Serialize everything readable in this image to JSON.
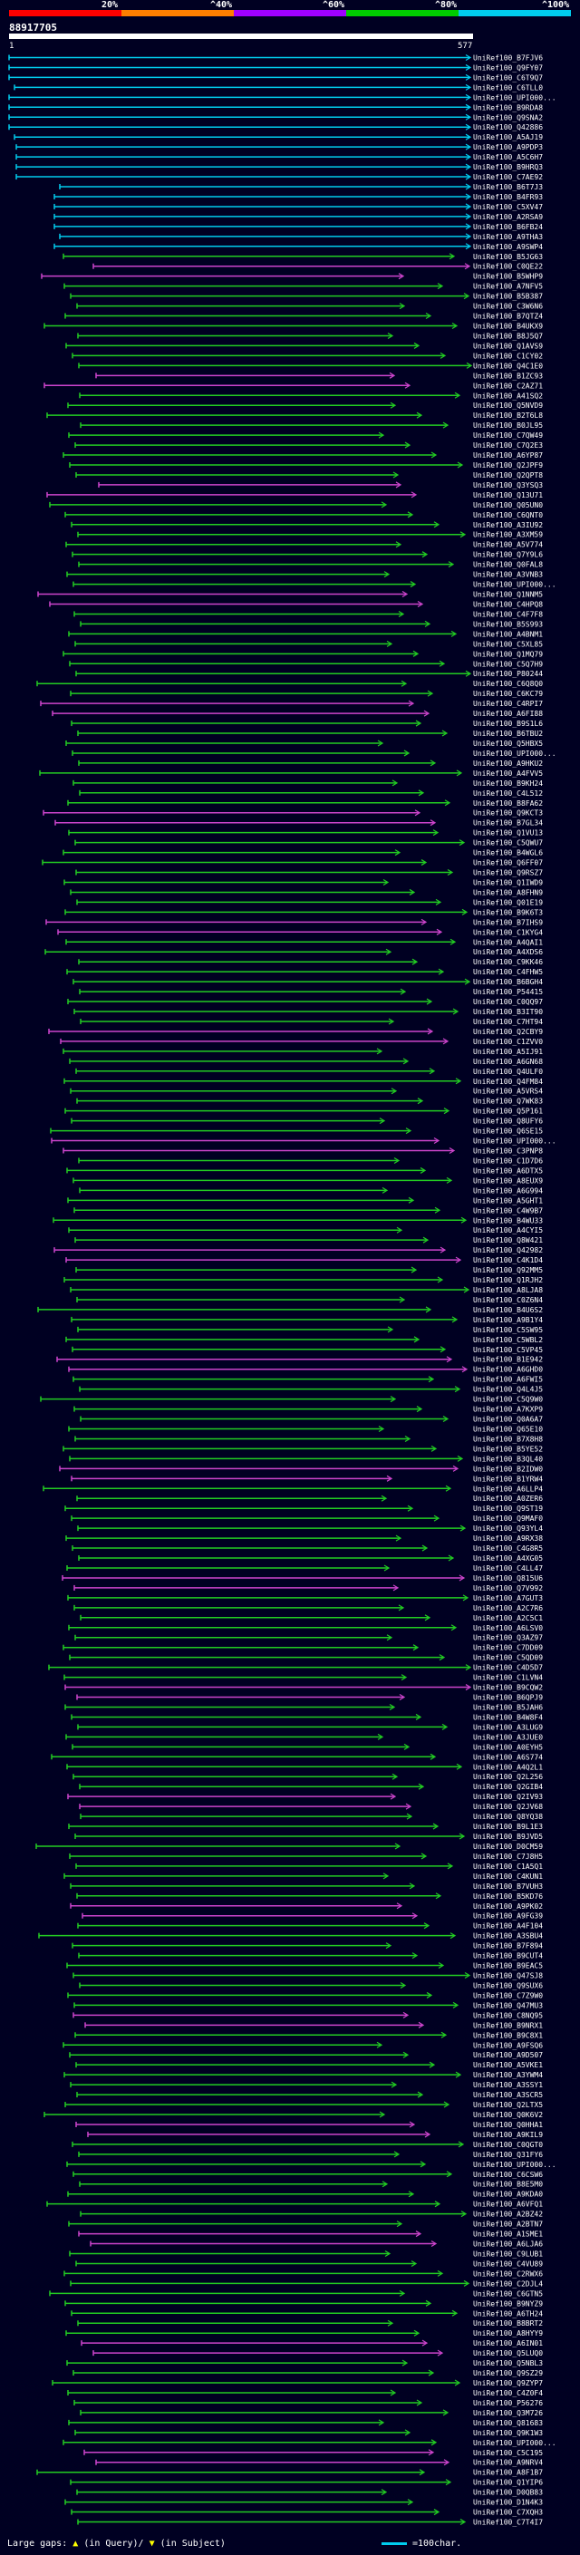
{
  "query_id": "88917705",
  "scale": {
    "start": "1",
    "end": "577"
  },
  "legend": [
    {
      "label": "20%",
      "color": "#ff0000"
    },
    {
      "label": "^40%",
      "color": "#ff7f00"
    },
    {
      "label": "^60%",
      "color": "#a000ff"
    },
    {
      "label": "^80%",
      "color": "#00cc00"
    },
    {
      "label": "^100%",
      "color": "#00ccee"
    }
  ],
  "footer": {
    "gaps_label": "Large gaps:",
    "gaps_query": "(in Query)/",
    "gaps_subject": "(in Subject)",
    "scale_note": "=100char."
  },
  "hits": [
    "UniRef100_B7FJV6",
    "UniRef100_Q9FY07",
    "UniRef100_C6T9Q7",
    "UniRef100_C6TLL0",
    "UniRef100_UPI000...",
    "UniRef100_B9RDA8",
    "UniRef100_Q9SNA2",
    "UniRef100_Q42886",
    "UniRef100_A5AJ19",
    "UniRef100_A9PDP3",
    "UniRef100_A5C6H7",
    "UniRef100_B9HRQ3",
    "UniRef100_C7AE92",
    "UniRef100_B6T7J3",
    "UniRef100_B4FR93",
    "UniRef100_C5XV47",
    "UniRef100_A2RSA9",
    "UniRef100_B6FB24",
    "UniRef100_A9THA3",
    "UniRef100_A9SWP4",
    "UniRef100_B5JG63",
    "UniRef100_C0QE22",
    "UniRef100_B5WHP9",
    "UniRef100_A7NFV5",
    "UniRef100_B5B387",
    "UniRef100_C3W6N6",
    "UniRef100_B7QTZ4",
    "UniRef100_B4UKX9",
    "UniRef100_B8J5Q7",
    "UniRef100_Q1AVS9",
    "UniRef100_C1CY02",
    "UniRef100_Q4C1E0",
    "UniRef100_B1ZC93",
    "UniRef100_C2AZ71",
    "UniRef100_A41SQ2",
    "UniRef100_Q5NVD9",
    "UniRef100_B2T6L8",
    "UniRef100_B0JL95",
    "UniRef100_C7QW49",
    "UniRef100_C7Q2E3",
    "UniRef100_A6YP87",
    "UniRef100_Q2JPF9",
    "UniRef100_Q2QPT8",
    "UniRef100_Q3YSQ3",
    "UniRef100_Q13U71",
    "UniRef100_Q05UN0",
    "UniRef100_C6QNT0",
    "UniRef100_A3IU92",
    "UniRef100_A3XM59",
    "UniRef100_A5V774",
    "UniRef100_Q7Y9L6",
    "UniRef100_Q0FAL8",
    "UniRef100_A3VNB3",
    "UniRef100_UPI000...",
    "UniRef100_Q1NNM5",
    "UniRef100_C4HPQ8",
    "UniRef100_C4F7F8",
    "UniRef100_B5S993",
    "UniRef100_A4BNM1",
    "UniRef100_C5XL85",
    "UniRef100_Q1MQ79",
    "UniRef100_C5Q7H9",
    "UniRef100_P80244",
    "UniRef100_C6Q8Q0",
    "UniRef100_C6KC79",
    "UniRef100_C4RPI7",
    "UniRef100_A6FI88",
    "UniRef100_B9S1L6",
    "UniRef100_B6TBU2",
    "UniRef100_Q5HBX5",
    "UniRef100_UPI000...",
    "UniRef100_A9HKU2",
    "UniRef100_A4FVV5",
    "UniRef100_B9KH24",
    "UniRef100_C4L512",
    "UniRef100_B8FA62",
    "UniRef100_Q9KCT3",
    "UniRef100_B7GL34",
    "UniRef100_Q1VU13",
    "UniRef100_C5QWU7",
    "UniRef100_B4WGL6",
    "UniRef100_Q6FF07",
    "UniRef100_Q9RSZ7",
    "UniRef100_Q1IWD9",
    "UniRef100_A8FHN9",
    "UniRef100_Q01E19",
    "UniRef100_B9K6T3",
    "UniRef100_B7IHS9",
    "UniRef100_C1KYG4",
    "UniRef100_A4QAI1",
    "UniRef100_A4XDS6",
    "UniRef100_C9KK46",
    "UniRef100_C4FHW5",
    "UniRef100_B6BGH4",
    "UniRef100_P54415",
    "UniRef100_C0QQ97",
    "UniRef100_B3IT90",
    "UniRef100_C7HT94",
    "UniRef100_Q2CBY9",
    "UniRef100_C1ZVV0",
    "UniRef100_A5IJ91",
    "UniRef100_A6GN68",
    "UniRef100_Q4ULF0",
    "UniRef100_Q4FM84",
    "UniRef100_A5VRS4",
    "UniRef100_Q7WK83",
    "UniRef100_Q5P161",
    "UniRef100_Q8UFY6",
    "UniRef100_Q6SE15",
    "UniRef100_UPI000...",
    "UniRef100_C3PNP8",
    "UniRef100_C1D7D6",
    "UniRef100_A6DTX5",
    "UniRef100_A8EUX9",
    "UniRef100_A6G994",
    "UniRef100_A5GHT1",
    "UniRef100_C4W9B7",
    "UniRef100_B4WU33",
    "UniRef100_A4CYI5",
    "UniRef100_Q8W421",
    "UniRef100_Q42982",
    "UniRef100_C4K1D4",
    "UniRef100_Q92MM5",
    "UniRef100_Q1RJH2",
    "UniRef100_A8LJA8",
    "UniRef100_C0Z6N4",
    "UniRef100_B4U6S2",
    "UniRef100_A9B1Y4",
    "UniRef100_C5SW95",
    "UniRef100_C5WBL2",
    "UniRef100_C5VP45",
    "UniRef100_B1E942",
    "UniRef100_A6GHD0",
    "UniRef100_A6FWI5",
    "UniRef100_Q4L4J5",
    "UniRef100_C5Q9W0",
    "UniRef100_A7KXP9",
    "UniRef100_Q0A6A7",
    "UniRef100_Q65E10",
    "UniRef100_B7X8H8",
    "UniRef100_B5YE52",
    "UniRef100_B3QL40",
    "UniRef100_B2IDW0",
    "UniRef100_B1YRW4",
    "UniRef100_A6LLP4",
    "UniRef100_A0ZER6",
    "UniRef100_Q9ST19",
    "UniRef100_Q9MAF0",
    "UniRef100_Q93YL4",
    "UniRef100_A9RX38",
    "UniRef100_C4G8R5",
    "UniRef100_A4XG05",
    "UniRef100_C4LL47",
    "UniRef100_Q815U6",
    "UniRef100_Q7V992",
    "UniRef100_A7GUT3",
    "UniRef100_A2C7R6",
    "UniRef100_A2C5C1",
    "UniRef100_A6LSV0",
    "UniRef100_Q3AZ97",
    "UniRef100_C7DD09",
    "UniRef100_C5QD09",
    "UniRef100_C4D5D7",
    "UniRef100_C1LVN4",
    "UniRef100_B9CQW2",
    "UniRef100_B6QPJ9",
    "UniRef100_B5JAH6",
    "UniRef100_B4W8F4",
    "UniRef100_A3LUG9",
    "UniRef100_A3JUE0",
    "UniRef100_A0EYH5",
    "UniRef100_A6S774",
    "UniRef100_A4Q2L1",
    "UniRef100_Q2L256",
    "UniRef100_Q2GIB4",
    "UniRef100_Q2IV93",
    "UniRef100_Q2JV68",
    "UniRef100_Q8YQ38",
    "UniRef100_B9L1E3",
    "UniRef100_B9JVD5",
    "UniRef100_D0CM59",
    "UniRef100_C7J8H5",
    "UniRef100_C1A5Q1",
    "UniRef100_C4KUN1",
    "UniRef100_B7VUH3",
    "UniRef100_B5KD76",
    "UniRef100_A9PK02",
    "UniRef100_A9FG39",
    "UniRef100_A4F104",
    "UniRef100_A3SBU4",
    "UniRef100_B7F894",
    "UniRef100_B9CUT4",
    "UniRef100_B9EAC5",
    "UniRef100_Q47SJ8",
    "UniRef100_Q9SUX6",
    "UniRef100_C7Z9W0",
    "UniRef100_Q47MU3",
    "UniRef100_C8NQ95",
    "UniRef100_B9NRX1",
    "UniRef100_B9C8X1",
    "UniRef100_A9FSQ6",
    "UniRef100_A9D507",
    "UniRef100_A5VKE1",
    "UniRef100_A3YWM4",
    "UniRef100_A3SSY1",
    "UniRef100_A3SCR5",
    "UniRef100_Q2LTX5",
    "UniRef100_Q0K6V2",
    "UniRef100_Q0HHA1",
    "UniRef100_A9KIL9",
    "UniRef100_C0QGT0",
    "UniRef100_Q31FY6",
    "UniRef100_UPI000...",
    "UniRef100_C6CSW6",
    "UniRef100_B8E5M0",
    "UniRef100_A9KDA0",
    "UniRef100_A6VFQ1",
    "UniRef100_A2BZ42",
    "UniRef100_A2BTN7",
    "UniRef100_A1SME1",
    "UniRef100_A6LJA6",
    "UniRef100_C9LUB1",
    "UniRef100_C4VU89",
    "UniRef100_C2RWX6",
    "UniRef100_C2DJL4",
    "UniRef100_C6GTN5",
    "UniRef100_B9NYZ9",
    "UniRef100_A6TH24",
    "UniRef100_B8BRT2",
    "UniRef100_A8HYY9",
    "UniRef100_A6IN01",
    "UniRef100_Q5LUQ0",
    "UniRef100_Q5NBL3",
    "UniRef100_Q9SZ29",
    "UniRef100_Q9ZYP7",
    "UniRef100_C4Z0F4",
    "UniRef100_P56276",
    "UniRef100_Q3M726",
    "UniRef100_Q81683",
    "UniRef100_Q9K1W3",
    "UniRef100_UPI000...",
    "UniRef100_C5C195",
    "UniRef100_A9NRV4",
    "UniRef100_A8F1B7",
    "UniRef100_Q1YIP6",
    "UniRef100_D0QB83",
    "UniRef100_D1N4K3",
    "UniRef100_C7XQH3",
    "UniRef100_C7T4I7"
  ]
}
